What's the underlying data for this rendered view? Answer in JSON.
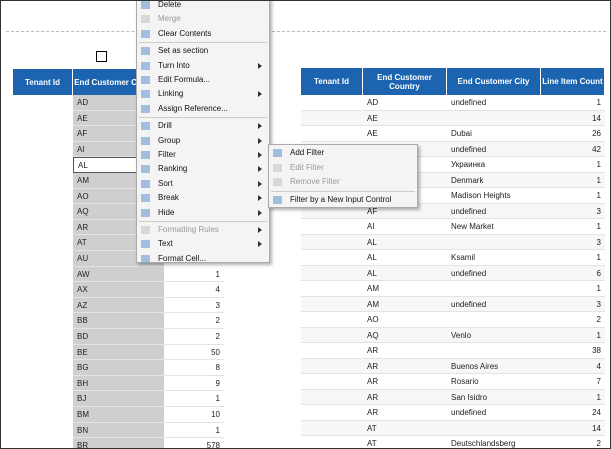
{
  "left_table": {
    "headers": [
      "Tenant Id",
      "End Customer Country"
    ],
    "countries": [
      "AD",
      "AE",
      "AF",
      "AI",
      "AL",
      "AM",
      "AO",
      "AQ",
      "AR",
      "AT",
      "AU",
      "AW",
      "AX",
      "AZ",
      "BB",
      "BD",
      "BE",
      "BG",
      "BH",
      "BJ",
      "BM",
      "BN",
      "BR"
    ],
    "counts": [
      null,
      null,
      null,
      null,
      null,
      null,
      null,
      null,
      null,
      null,
      null,
      1,
      4,
      3,
      2,
      2,
      50,
      8,
      9,
      1,
      10,
      1,
      578
    ]
  },
  "context_menu": {
    "items": [
      {
        "label": "Delete"
      },
      {
        "label": "Merge",
        "disabled": true
      },
      {
        "label": "Clear Contents"
      },
      {
        "label": "Set as section",
        "separator_before": true
      },
      {
        "label": "Turn Into",
        "has_submenu": true
      },
      {
        "label": "Edit Formula..."
      },
      {
        "label": "Linking",
        "has_submenu": true
      },
      {
        "label": "Assign Reference..."
      },
      {
        "label": "Drill",
        "has_submenu": true,
        "separator_before": true
      },
      {
        "label": "Group",
        "has_submenu": true
      },
      {
        "label": "Filter",
        "has_submenu": true
      },
      {
        "label": "Ranking",
        "has_submenu": true
      },
      {
        "label": "Sort",
        "has_submenu": true
      },
      {
        "label": "Break",
        "has_submenu": true
      },
      {
        "label": "Hide",
        "has_submenu": true
      },
      {
        "label": "Formatting Rules",
        "disabled": true,
        "has_submenu": true,
        "separator_before": true
      },
      {
        "label": "Text",
        "has_submenu": true
      },
      {
        "label": "Format Cell..."
      }
    ]
  },
  "filter_submenu": {
    "items": [
      {
        "label": "Add Filter"
      },
      {
        "label": "Edit Filter",
        "disabled": true
      },
      {
        "label": "Remove Filter",
        "disabled": true
      },
      {
        "label": "Filter by a New Input Control",
        "separator_before": true
      }
    ]
  },
  "right_table": {
    "headers": [
      "Tenant Id",
      "End Customer Country",
      "End Customer City",
      "Line Item Count"
    ],
    "rows": [
      [
        "AD",
        "undefined",
        1
      ],
      [
        "AE",
        null,
        14
      ],
      [
        "AE",
        "Dubai",
        26
      ],
      [
        null,
        "undefined",
        42
      ],
      [
        null,
        "Украинка",
        1
      ],
      [
        null,
        "Denmark",
        1
      ],
      [
        null,
        "Madison Heights",
        1
      ],
      [
        "AF",
        "undefined",
        3
      ],
      [
        "AI",
        "New Market",
        1
      ],
      [
        "AL",
        null,
        3
      ],
      [
        "AL",
        "Ksamil",
        1
      ],
      [
        "AL",
        "undefined",
        6
      ],
      [
        "AM",
        null,
        1
      ],
      [
        "AM",
        "undefined",
        3
      ],
      [
        "AO",
        null,
        2
      ],
      [
        "AQ",
        "Venlo",
        1
      ],
      [
        "AR",
        null,
        38
      ],
      [
        "AR",
        "Buenos Aires",
        4
      ],
      [
        "AR",
        "Rosario",
        7
      ],
      [
        "AR",
        "San Isidro",
        1
      ],
      [
        "AR",
        "undefined",
        24
      ],
      [
        "AT",
        null,
        14
      ],
      [
        "AT",
        "Deutschlandsberg",
        2
      ]
    ]
  }
}
